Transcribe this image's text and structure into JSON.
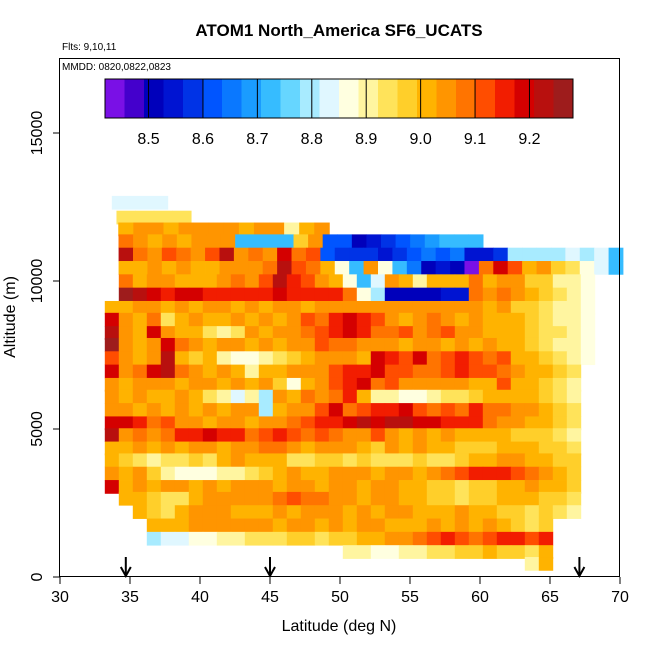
{
  "chart_data": {
    "type": "heatmap",
    "title": "ATOM1 North_America SF6_UCATS",
    "subtitle_lines": [
      "Flts: 9,10,11",
      "MMDD: 0820,0822,0823"
    ],
    "xlabel": "Latitude (deg N)",
    "ylabel": "Altitude (m)",
    "xlim": [
      30,
      70
    ],
    "ylim": [
      0,
      17500
    ],
    "x_ticks": [
      30,
      35,
      40,
      45,
      50,
      55,
      60,
      65,
      70
    ],
    "y_ticks": [
      0,
      5000,
      10000,
      15000
    ],
    "colorbar": {
      "range": [
        8.42,
        9.28
      ],
      "ticks": [
        8.5,
        8.6,
        8.7,
        8.8,
        8.9,
        9.0,
        9.1,
        9.2
      ],
      "colors": [
        "#7a10e6",
        "#4400cc",
        "#0000bb",
        "#0014d2",
        "#0033e6",
        "#0055ff",
        "#0a78ff",
        "#1a9cff",
        "#36bcff",
        "#66d6ff",
        "#a8ebff",
        "#e0f7ff",
        "#ffffe0",
        "#fff5a0",
        "#ffe35a",
        "#ffcf2a",
        "#ffb300",
        "#ff9500",
        "#ff7400",
        "#ff4d00",
        "#f21d00",
        "#d40000",
        "#b8100e",
        "#9e1c1c"
      ]
    },
    "flight_markers_latitude": [
      34.7,
      45.0,
      67.1
    ],
    "rows": [
      {
        "alt": 12650,
        "lat": [
          34.7,
          36.7
        ],
        "values": [
          8.84,
          8.84
        ]
      },
      {
        "alt": 12150,
        "lat": [
          34.7,
          38.7
        ],
        "values": [
          8.95,
          8.95,
          8.95,
          8.95
        ]
      },
      {
        "alt": 11750,
        "lat": [
          34.7,
          48.7
        ],
        "values": [
          9.02,
          9.03,
          9.04,
          9.02,
          9.04,
          9.05,
          9.03,
          9.04,
          9.02,
          9.03,
          9.04,
          8.92,
          9.02,
          9.03
        ]
      },
      {
        "alt": 11350,
        "lat": [
          34.7,
          59.7
        ],
        "values": [
          9.1,
          9.03,
          9.02,
          9.03,
          9.02,
          9.04,
          9.03,
          9.05,
          8.71,
          8.72,
          8.71,
          8.74,
          8.98,
          9.04,
          8.62,
          8.62,
          8.52,
          8.53,
          8.58,
          8.62,
          8.67,
          8.68,
          8.73,
          8.74,
          8.74
        ]
      },
      {
        "alt": 10900,
        "lat": [
          34.7,
          69.7
        ],
        "values": [
          9.22,
          9.08,
          9.05,
          9.12,
          9.1,
          9.04,
          9.12,
          9.22,
          9.03,
          9.1,
          9.05,
          9.18,
          9.1,
          9.12,
          8.62,
          8.58,
          8.58,
          8.57,
          8.56,
          8.58,
          8.6,
          8.64,
          8.62,
          8.64,
          8.56,
          8.56,
          8.58,
          8.78,
          8.79,
          8.79,
          8.81,
          8.82,
          8.81,
          8.82,
          8.73
        ]
      },
      {
        "alt": 10450,
        "lat": [
          34.7,
          69.7
        ],
        "values": [
          9.02,
          9.01,
          9.03,
          9.0,
          9.03,
          9.01,
          9.02,
          9.04,
          9.03,
          9.04,
          9.1,
          9.22,
          9.12,
          9.08,
          9.02,
          8.85,
          8.74,
          9.03,
          8.85,
          8.72,
          8.64,
          8.52,
          8.54,
          8.5,
          8.42,
          9.1,
          9.18,
          9.12,
          9.02,
          9.06,
          8.98,
          8.94,
          8.88,
          8.82,
          8.74
        ]
      },
      {
        "alt": 10000,
        "lat": [
          34.7,
          67.7
        ],
        "values": [
          9.1,
          9.02,
          9.05,
          9.04,
          9.02,
          9.0,
          9.02,
          9.04,
          9.1,
          9.05,
          9.12,
          9.22,
          9.16,
          9.12,
          9.05,
          9.02,
          8.88,
          8.72,
          8.84,
          9.05,
          9.02,
          8.9,
          9.01,
          9.01,
          9.02,
          9.1,
          9.02,
          9.05,
          9.03,
          8.98,
          8.96,
          8.92,
          8.9,
          8.88
        ]
      },
      {
        "alt": 9550,
        "lat": [
          34.7,
          67.7
        ],
        "values": [
          9.25,
          9.22,
          9.18,
          9.16,
          9.2,
          9.18,
          9.17,
          9.17,
          9.16,
          9.16,
          9.16,
          9.18,
          9.16,
          9.15,
          9.17,
          9.15,
          9.1,
          8.85,
          8.78,
          8.52,
          8.52,
          8.52,
          8.52,
          8.53,
          8.53,
          9.1,
          9.05,
          9.1,
          9.04,
          9.0,
          8.98,
          8.94,
          8.9,
          8.86
        ]
      },
      {
        "alt": 9100,
        "lat": [
          33.7,
          67.7
        ],
        "values": [
          9.02,
          9.02,
          9.03,
          9.03,
          9.02,
          9.03,
          9.02,
          9.04,
          9.03,
          9.02,
          9.03,
          9.02,
          9.04,
          9.03,
          9.02,
          9.03,
          9.04,
          9.05,
          9.04,
          9.03,
          9.05,
          9.04,
          9.03,
          9.04,
          9.06,
          9.03,
          9.04,
          9.02,
          9.03,
          8.98,
          8.96,
          8.94,
          8.92,
          8.9,
          8.86
        ]
      },
      {
        "alt": 8700,
        "lat": [
          33.7,
          67.7
        ],
        "values": [
          9.2,
          9.05,
          9.02,
          9.1,
          8.95,
          9.02,
          9.04,
          9.02,
          9.02,
          9.05,
          9.02,
          9.03,
          9.02,
          9.05,
          9.12,
          9.1,
          9.14,
          9.18,
          9.16,
          9.12,
          9.05,
          9.02,
          9.05,
          9.1,
          9.05,
          9.02,
          9.04,
          9.02,
          9.0,
          9.0,
          8.98,
          8.94,
          8.92,
          8.9,
          8.88
        ]
      },
      {
        "alt": 8250,
        "lat": [
          33.7,
          67.7
        ],
        "values": [
          9.22,
          9.06,
          9.02,
          9.2,
          9.03,
          9.02,
          9.0,
          8.95,
          8.9,
          8.95,
          9.03,
          9.02,
          9.03,
          9.05,
          9.1,
          9.12,
          9.16,
          9.18,
          9.14,
          9.1,
          9.08,
          9.12,
          9.05,
          9.1,
          9.12,
          9.05,
          9.04,
          9.02,
          9.01,
          9.0,
          8.98,
          8.95,
          8.93,
          8.9,
          8.86
        ]
      },
      {
        "alt": 7850,
        "lat": [
          33.7,
          67.7
        ],
        "values": [
          9.25,
          9.06,
          9.02,
          9.05,
          9.2,
          9.1,
          9.05,
          9.02,
          9.04,
          9.03,
          9.02,
          9.05,
          9.02,
          9.03,
          9.05,
          9.12,
          9.1,
          9.08,
          9.05,
          9.04,
          9.06,
          9.02,
          9.04,
          9.05,
          9.02,
          9.03,
          9.02,
          9.03,
          9.02,
          9.0,
          8.98,
          8.95,
          8.92,
          8.9,
          8.86
        ]
      },
      {
        "alt": 7400,
        "lat": [
          33.7,
          67.7
        ],
        "values": [
          9.12,
          9.05,
          9.02,
          9.03,
          9.22,
          9.02,
          8.98,
          9.0,
          8.92,
          8.86,
          8.88,
          8.92,
          8.95,
          8.98,
          9.02,
          9.04,
          9.03,
          9.05,
          9.02,
          9.18,
          9.14,
          9.12,
          9.18,
          9.1,
          9.12,
          9.16,
          9.12,
          9.1,
          9.12,
          9.02,
          9.0,
          8.98,
          8.95,
          8.92,
          8.88
        ]
      },
      {
        "alt": 6950,
        "lat": [
          33.7,
          66.7
        ],
        "values": [
          9.18,
          9.05,
          9.08,
          9.2,
          9.22,
          9.1,
          9.03,
          9.02,
          9.04,
          9.0,
          8.92,
          9.02,
          9.02,
          9.04,
          9.03,
          9.05,
          9.12,
          9.15,
          9.16,
          9.18,
          9.12,
          9.12,
          9.1,
          9.1,
          9.12,
          9.14,
          9.12,
          9.12,
          9.1,
          9.04,
          9.02,
          9.0,
          8.98,
          8.94
        ]
      },
      {
        "alt": 6500,
        "lat": [
          33.7,
          66.7
        ],
        "values": [
          9.04,
          9.02,
          9.05,
          9.03,
          9.04,
          9.02,
          9.03,
          9.04,
          9.02,
          9.03,
          9.02,
          9.04,
          8.98,
          8.88,
          9.0,
          9.03,
          9.12,
          9.14,
          9.18,
          9.1,
          9.12,
          9.05,
          9.04,
          9.05,
          9.04,
          9.03,
          9.02,
          9.02,
          9.12,
          9.02,
          9.0,
          8.98,
          8.95,
          8.92
        ]
      },
      {
        "alt": 6100,
        "lat": [
          33.7,
          66.7
        ],
        "values": [
          9.05,
          9.02,
          9.04,
          9.0,
          9.02,
          9.03,
          9.0,
          8.94,
          8.9,
          8.84,
          8.9,
          8.78,
          9.03,
          9.02,
          9.1,
          9.05,
          9.1,
          9.14,
          9.02,
          8.9,
          8.92,
          8.88,
          8.86,
          8.9,
          8.94,
          8.95,
          8.98,
          9.0,
          9.02,
          9.02,
          9.0,
          8.98,
          8.95,
          8.92
        ]
      },
      {
        "alt": 5650,
        "lat": [
          33.7,
          66.7
        ],
        "values": [
          9.05,
          9.03,
          9.02,
          9.04,
          9.02,
          9.03,
          9.02,
          9.03,
          9.02,
          9.04,
          9.03,
          8.78,
          9.02,
          9.03,
          9.05,
          9.12,
          9.18,
          9.1,
          9.12,
          9.14,
          9.16,
          9.18,
          9.12,
          9.1,
          9.12,
          9.1,
          9.14,
          9.1,
          9.1,
          9.05,
          9.03,
          9.0,
          8.98,
          8.94
        ]
      },
      {
        "alt": 5200,
        "lat": [
          33.7,
          66.7
        ],
        "values": [
          9.2,
          9.18,
          9.14,
          9.1,
          9.12,
          9.05,
          9.05,
          9.02,
          9.03,
          9.05,
          9.02,
          9.04,
          9.06,
          9.1,
          9.12,
          9.14,
          9.16,
          9.2,
          9.22,
          9.2,
          9.24,
          9.22,
          9.2,
          9.18,
          9.16,
          9.14,
          9.15,
          9.1,
          9.05,
          9.04,
          9.02,
          9.0,
          8.98,
          8.95
        ]
      },
      {
        "alt": 4800,
        "lat": [
          33.7,
          66.7
        ],
        "values": [
          9.22,
          9.05,
          9.08,
          9.05,
          9.1,
          9.14,
          9.15,
          9.18,
          9.16,
          9.14,
          9.1,
          9.12,
          9.15,
          9.12,
          9.1,
          9.12,
          9.1,
          9.05,
          9.04,
          9.12,
          9.03,
          9.02,
          9.03,
          9.02,
          9.03,
          9.02,
          9.01,
          9.0,
          9.0,
          8.99,
          8.98,
          8.96,
          8.94,
          8.92
        ]
      },
      {
        "alt": 4350,
        "lat": [
          33.7,
          66.7
        ],
        "values": [
          9.02,
          9.0,
          9.03,
          9.02,
          9.03,
          9.02,
          9.04,
          9.03,
          9.02,
          9.03,
          9.05,
          9.1,
          9.08,
          9.04,
          9.02,
          9.03,
          9.05,
          9.04,
          9.02,
          8.98,
          9.04,
          9.02,
          9.03,
          9.02,
          9.0,
          8.98,
          8.96,
          8.98,
          9.0,
          9.02,
          9.0,
          8.98,
          8.96,
          8.94
        ]
      },
      {
        "alt": 3950,
        "lat": [
          33.7,
          66.7
        ],
        "values": [
          9.02,
          8.96,
          8.94,
          8.92,
          8.94,
          8.95,
          8.96,
          8.93,
          9.02,
          9.03,
          9.02,
          9.0,
          9.02,
          8.95,
          8.94,
          8.96,
          8.98,
          8.95,
          8.96,
          8.93,
          8.94,
          8.95,
          8.96,
          8.94,
          8.95,
          8.96,
          9.0,
          9.02,
          9.04,
          9.03,
          9.02,
          9.0,
          8.98,
          8.96
        ]
      },
      {
        "alt": 3500,
        "lat": [
          33.7,
          66.7
        ],
        "values": [
          9.04,
          9.02,
          9.03,
          8.96,
          8.92,
          8.88,
          8.86,
          8.88,
          8.9,
          8.92,
          8.94,
          8.96,
          9.02,
          9.03,
          9.02,
          9.0,
          9.03,
          9.04,
          9.03,
          9.02,
          9.04,
          9.03,
          9.02,
          9.03,
          9.1,
          9.12,
          9.14,
          9.16,
          9.14,
          9.12,
          9.1,
          9.05,
          9.02,
          8.98
        ]
      },
      {
        "alt": 3050,
        "lat": [
          33.7,
          66.7
        ],
        "values": [
          9.2,
          9.02,
          9.04,
          9.02,
          9.03,
          9.05,
          9.02,
          9.03,
          9.02,
          9.04,
          9.03,
          9.03,
          9.02,
          9.05,
          9.03,
          9.02,
          9.04,
          9.03,
          9.02,
          9.03,
          9.04,
          9.02,
          9.0,
          8.98,
          8.96,
          8.95,
          8.96,
          8.98,
          9.0,
          9.02,
          9.03,
          9.02,
          9.0,
          8.98
        ]
      },
      {
        "alt": 2650,
        "lat": [
          34.7,
          66.7
        ],
        "values": [
          9.02,
          9.0,
          8.98,
          8.95,
          8.94,
          9.02,
          9.03,
          9.04,
          9.05,
          9.04,
          9.06,
          9.1,
          9.12,
          9.1,
          9.08,
          9.06,
          9.04,
          9.02,
          9.03,
          9.04,
          9.02,
          9.0,
          8.98,
          8.96,
          8.95,
          8.96,
          8.98,
          9.0,
          9.02,
          9.0,
          8.98,
          8.96,
          8.95
        ]
      },
      {
        "alt": 2200,
        "lat": [
          35.7,
          66.7
        ],
        "values": [
          9.02,
          8.96,
          8.94,
          9.02,
          9.03,
          9.04,
          9.03,
          9.02,
          9.0,
          9.02,
          9.03,
          9.02,
          9.03,
          9.05,
          9.03,
          9.02,
          9.03,
          9.02,
          9.04,
          9.03,
          9.02,
          9.0,
          9.02,
          9.03,
          9.02,
          9.0,
          8.98,
          8.96,
          8.95,
          8.96,
          8.94,
          8.92
        ]
      },
      {
        "alt": 1750,
        "lat": [
          36.7,
          64.7
        ],
        "values": [
          9.02,
          9.0,
          9.02,
          9.03,
          9.04,
          9.03,
          9.05,
          9.04,
          9.03,
          9.02,
          9.04,
          9.03,
          9.02,
          9.03,
          9.02,
          9.04,
          9.03,
          9.02,
          9.0,
          9.02,
          9.03,
          9.02,
          9.04,
          9.02,
          9.03,
          9.02,
          8.98,
          8.95,
          8.96
        ]
      },
      {
        "alt": 1300,
        "lat": [
          36.7,
          64.7
        ],
        "values": [
          8.8,
          8.82,
          8.84,
          8.86,
          8.88,
          8.9,
          8.92,
          8.93,
          8.94,
          8.95,
          8.96,
          8.96,
          8.95,
          8.96,
          8.98,
          9.0,
          9.02,
          9.03,
          9.05,
          9.1,
          9.12,
          9.14,
          9.12,
          9.1,
          9.12,
          9.14,
          9.14,
          9.12,
          9.15
        ]
      },
      {
        "alt": 850,
        "lat": [
          50.7,
          64.7
        ],
        "values": [
          8.92,
          8.9,
          8.88,
          8.86,
          8.9,
          8.92,
          8.94,
          8.95,
          8.96,
          8.98,
          9.0,
          8.98,
          8.96,
          8.94,
          9.02
        ]
      },
      {
        "alt": 450,
        "lat": [
          63.7,
          64.7
        ],
        "values": [
          8.9,
          9.02
        ]
      }
    ]
  }
}
